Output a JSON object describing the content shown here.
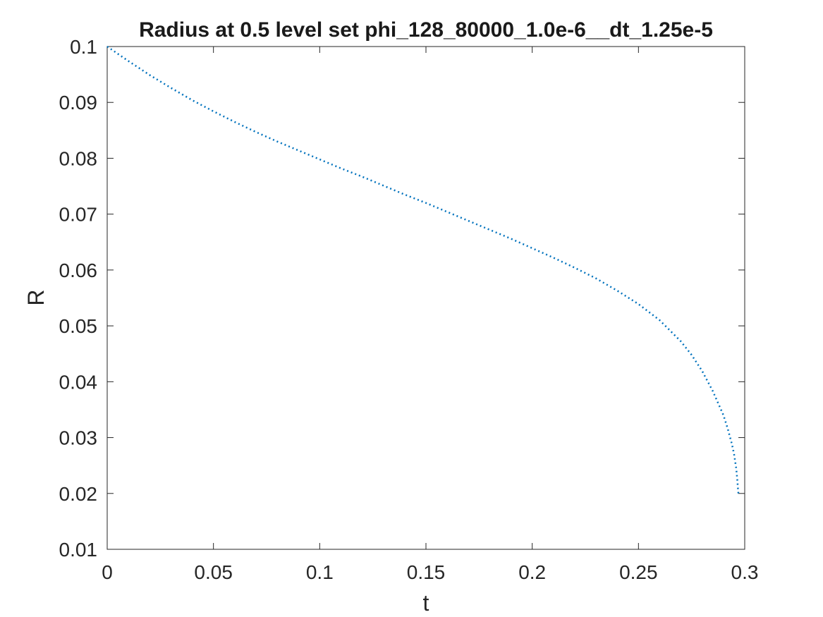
{
  "chart_data": {
    "type": "line",
    "title": "Radius at 0.5 level set phi_128_80000_1.0e-6__dt_1.25e-5",
    "xlabel": "t",
    "ylabel": "R",
    "xlim": [
      0,
      0.3
    ],
    "ylim": [
      0.01,
      0.1
    ],
    "xticks": [
      "0",
      "0.05",
      "0.1",
      "0.15",
      "0.2",
      "0.25",
      "0.3"
    ],
    "yticks": [
      "0.01",
      "0.02",
      "0.03",
      "0.04",
      "0.05",
      "0.06",
      "0.07",
      "0.08",
      "0.09",
      "0.1"
    ],
    "grid": false,
    "line_style": "dotted",
    "colors": {
      "series": "#0072bd",
      "axes": "#262626"
    },
    "series": [
      {
        "x": [
          0,
          0.01,
          0.02,
          0.03,
          0.04,
          0.05,
          0.06,
          0.07,
          0.08,
          0.09,
          0.1,
          0.11,
          0.12,
          0.13,
          0.14,
          0.15,
          0.16,
          0.17,
          0.18,
          0.19,
          0.2,
          0.21,
          0.22,
          0.23,
          0.24,
          0.25,
          0.26,
          0.27,
          0.275,
          0.28,
          0.285,
          0.29,
          0.292,
          0.294,
          0.295,
          0.296,
          0.2965,
          0.297
        ],
        "y": [
          0.1,
          0.0974,
          0.0949,
          0.0926,
          0.0904,
          0.0884,
          0.0865,
          0.0847,
          0.083,
          0.0814,
          0.0798,
          0.0782,
          0.0767,
          0.0751,
          0.0735,
          0.072,
          0.0704,
          0.0688,
          0.0672,
          0.0656,
          0.0639,
          0.0622,
          0.0604,
          0.0585,
          0.0563,
          0.0539,
          0.051,
          0.0472,
          0.0448,
          0.0419,
          0.0383,
          0.034,
          0.0316,
          0.0288,
          0.027,
          0.0245,
          0.0225,
          0.02
        ]
      }
    ]
  }
}
